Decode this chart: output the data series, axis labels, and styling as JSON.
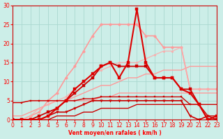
{
  "xlabel": "Vent moyen/en rafales ( km/h )",
  "ylabel": "",
  "xlim": [
    0,
    23
  ],
  "ylim": [
    0,
    30
  ],
  "xticks": [
    0,
    1,
    2,
    3,
    4,
    5,
    6,
    7,
    8,
    9,
    10,
    11,
    12,
    13,
    14,
    15,
    16,
    17,
    18,
    19,
    20,
    21,
    22,
    23
  ],
  "yticks": [
    0,
    5,
    10,
    15,
    20,
    25,
    30
  ],
  "bg_color": "#cceee8",
  "grid_color": "#aad8d0",
  "series": [
    {
      "x": [
        0,
        1,
        2,
        3,
        4,
        5,
        6,
        7,
        8,
        9,
        10,
        11,
        12,
        13,
        14,
        15,
        16,
        17,
        18,
        19,
        20,
        21,
        22,
        23
      ],
      "y": [
        1,
        1,
        2,
        3,
        4,
        5,
        5,
        6,
        7,
        8,
        9,
        9,
        10,
        11,
        11,
        12,
        12,
        13,
        13,
        13,
        14,
        14,
        14,
        14
      ],
      "color": "#ff9999",
      "lw": 1.0,
      "marker": "None",
      "ms": 0,
      "alpha": 1.0,
      "zorder": 2
    },
    {
      "x": [
        0,
        1,
        2,
        3,
        4,
        5,
        6,
        7,
        8,
        9,
        10,
        11,
        12,
        13,
        14,
        15,
        16,
        17,
        18,
        19,
        20,
        21,
        22,
        23
      ],
      "y": [
        4.5,
        4.5,
        5,
        5,
        5,
        5,
        5,
        5,
        5,
        5,
        6,
        6,
        7,
        7,
        7,
        7,
        7,
        7,
        7,
        7,
        7,
        7,
        7,
        7
      ],
      "color": "#ff9999",
      "lw": 1.0,
      "marker": "None",
      "ms": 0,
      "alpha": 1.0,
      "zorder": 2
    },
    {
      "x": [
        0,
        1,
        2,
        3,
        4,
        5,
        6,
        7,
        8,
        9,
        10,
        11,
        12,
        13,
        14,
        15,
        16,
        17,
        18,
        19,
        20,
        21,
        22,
        23
      ],
      "y": [
        0,
        0,
        1,
        2,
        5,
        7,
        11,
        14,
        18,
        22,
        25,
        25,
        25,
        25,
        25,
        22,
        22,
        19,
        19,
        19,
        8,
        8,
        8,
        8
      ],
      "color": "#ff9999",
      "lw": 1.2,
      "marker": "o",
      "ms": 2.5,
      "alpha": 1.0,
      "zorder": 2
    },
    {
      "x": [
        0,
        1,
        2,
        3,
        4,
        5,
        6,
        7,
        8,
        9,
        10,
        11,
        12,
        13,
        14,
        15,
        16,
        17,
        18,
        19,
        20,
        21,
        22,
        23
      ],
      "y": [
        0,
        0,
        1,
        3,
        4,
        5,
        6,
        8,
        10,
        12,
        13,
        14,
        15,
        15,
        15,
        16,
        17,
        18,
        18,
        19,
        8,
        8,
        8,
        8
      ],
      "color": "#ffaaaa",
      "lw": 1.0,
      "marker": "o",
      "ms": 2,
      "alpha": 0.8,
      "zorder": 2
    },
    {
      "x": [
        0,
        1,
        2,
        3,
        4,
        5,
        6,
        7,
        8,
        9,
        10,
        11,
        12,
        13,
        14,
        15,
        16,
        17,
        18,
        19,
        20,
        21,
        22,
        23
      ],
      "y": [
        0,
        0,
        0,
        0,
        0,
        1,
        1,
        1,
        2,
        2,
        3,
        3,
        3,
        3,
        4,
        4,
        4,
        4,
        4,
        4,
        4,
        4,
        4,
        4
      ],
      "color": "#cc0000",
      "lw": 1.0,
      "marker": "None",
      "ms": 0,
      "alpha": 1.0,
      "zorder": 3
    },
    {
      "x": [
        0,
        1,
        2,
        3,
        4,
        5,
        6,
        7,
        8,
        9,
        10,
        11,
        12,
        13,
        14,
        15,
        16,
        17,
        18,
        19,
        20,
        21,
        22,
        23
      ],
      "y": [
        4.5,
        4.5,
        5,
        5,
        5,
        5,
        5,
        5,
        5.5,
        5.5,
        6,
        6,
        6,
        6,
        6,
        6,
        6,
        6,
        6,
        6,
        4,
        4,
        1,
        1
      ],
      "color": "#cc0000",
      "lw": 1.0,
      "marker": "s",
      "ms": 2,
      "alpha": 1.0,
      "zorder": 3
    },
    {
      "x": [
        0,
        1,
        2,
        3,
        4,
        5,
        6,
        7,
        8,
        9,
        10,
        11,
        12,
        13,
        14,
        15,
        16,
        17,
        18,
        19,
        20,
        21,
        22,
        23
      ],
      "y": [
        0,
        0,
        0,
        0,
        1,
        2,
        2,
        3,
        4,
        5,
        5,
        5,
        5,
        5,
        5,
        5,
        5,
        5,
        5,
        5,
        1,
        0,
        1,
        0
      ],
      "color": "#cc0000",
      "lw": 1.2,
      "marker": "v",
      "ms": 2.5,
      "alpha": 1.0,
      "zorder": 4
    },
    {
      "x": [
        0,
        1,
        2,
        3,
        4,
        5,
        6,
        7,
        8,
        9,
        10,
        11,
        12,
        13,
        14,
        15,
        16,
        17,
        18,
        19,
        20,
        21,
        22,
        23
      ],
      "y": [
        0,
        0,
        0,
        1,
        2,
        3,
        5,
        7,
        9,
        11,
        14,
        15,
        14,
        14,
        14,
        14,
        11,
        11,
        11,
        8,
        8,
        4,
        0,
        0
      ],
      "color": "#cc0000",
      "lw": 1.3,
      "marker": "s",
      "ms": 2.5,
      "alpha": 1.0,
      "zorder": 4
    },
    {
      "x": [
        0,
        1,
        2,
        3,
        4,
        5,
        6,
        7,
        8,
        9,
        10,
        11,
        12,
        13,
        14,
        15,
        16,
        17,
        18,
        19,
        20,
        21,
        22,
        23
      ],
      "y": [
        0,
        0,
        0,
        0,
        1,
        3,
        5,
        8,
        10,
        12,
        14,
        15,
        11,
        15,
        29,
        15,
        11,
        11,
        11,
        8,
        7,
        4,
        0,
        1
      ],
      "color": "#dd0000",
      "lw": 1.5,
      "marker": "s",
      "ms": 2.5,
      "alpha": 1.0,
      "zorder": 5
    }
  ]
}
